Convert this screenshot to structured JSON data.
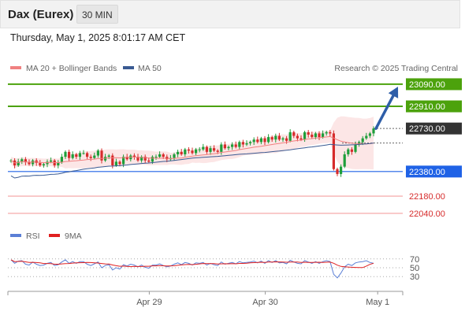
{
  "header": {
    "title": "Dax (Eurex)",
    "timeframe": "30 MIN",
    "timestamp": "Thursday, May 1, 2025 8:01:17 AM CET"
  },
  "legend": {
    "ma20_bb": "MA 20 + Bollinger Bands",
    "ma50": "MA 50",
    "credit": "Research © 2025 Trading Central",
    "rsi": "RSI",
    "rsi_ma": "9MA"
  },
  "colors": {
    "up_candle": "#1e9e3a",
    "down_candle": "#d62b2b",
    "ma20": "#f08080",
    "bollinger_fill": "#fce6e6",
    "ma50": "#3a5a92",
    "resistance": "#4ca20c",
    "pivot": "#1f62e6",
    "support": "#f4a0a0",
    "current_price": "#333333",
    "arrow": "#2e5ea8",
    "rsi": "#5b7fd6",
    "rsi_ma": "#e02020"
  },
  "price_axis": {
    "min": 21950,
    "max": 23160
  },
  "levels": [
    {
      "id": "resistance-2",
      "value": 23090,
      "label": "23090.00",
      "type": "resistance"
    },
    {
      "id": "resistance-1",
      "value": 22910,
      "label": "22910.00",
      "type": "resistance"
    },
    {
      "id": "current-price",
      "value": 22730,
      "label": "22730.00",
      "type": "current"
    },
    {
      "id": "pivot",
      "value": 22380,
      "label": "22380.00",
      "type": "pivot"
    },
    {
      "id": "support-1",
      "value": 22180,
      "label": "22180.00",
      "type": "support"
    },
    {
      "id": "support-2",
      "value": 22040,
      "label": "22040.00",
      "type": "support"
    }
  ],
  "arrow": {
    "from": 22730,
    "to": 23070
  },
  "x_labels": [
    {
      "label": "Apr 29",
      "index": 39
    },
    {
      "label": "Apr 30",
      "index": 71
    },
    {
      "label": "May 1",
      "index": 102
    }
  ],
  "rsi_axis": {
    "min": 0,
    "max": 100,
    "ticks": [
      70,
      50,
      30
    ]
  },
  "chart_data": {
    "type": "candlestick",
    "series": [
      {
        "name": "MA 20 + Bollinger Bands"
      },
      {
        "name": "MA 50"
      },
      {
        "name": "RSI"
      },
      {
        "name": "9MA"
      }
    ],
    "candle_count": 101,
    "start_close": 22470,
    "closes": [
      22470,
      22430,
      22460,
      22480,
      22455,
      22440,
      22470,
      22450,
      22430,
      22440,
      22460,
      22470,
      22430,
      22455,
      22500,
      22540,
      22490,
      22520,
      22500,
      22530,
      22530,
      22500,
      22490,
      22510,
      22550,
      22470,
      22500,
      22510,
      22430,
      22460,
      22440,
      22500,
      22480,
      22510,
      22500,
      22470,
      22500,
      22470,
      22460,
      22500,
      22500,
      22520,
      22500,
      22480,
      22490,
      22520,
      22540,
      22520,
      22560,
      22550,
      22530,
      22560,
      22560,
      22580,
      22540,
      22570,
      22550,
      22540,
      22600,
      22570,
      22580,
      22600,
      22580,
      22620,
      22600,
      22610,
      22620,
      22640,
      22620,
      22650,
      22620,
      22660,
      22640,
      22670,
      22640,
      22650,
      22630,
      22700,
      22670,
      22650,
      22640,
      22700,
      22680,
      22660,
      22690,
      22660,
      22690,
      22700,
      22690,
      22400,
      22360,
      22420,
      22520,
      22560,
      22540,
      22600,
      22620,
      22650,
      22670,
      22690,
      22730
    ],
    "rsi": [
      68,
      60,
      65,
      66,
      58,
      56,
      63,
      58,
      55,
      56,
      60,
      62,
      55,
      57,
      63,
      68,
      60,
      64,
      60,
      64,
      64,
      58,
      55,
      59,
      63,
      50,
      55,
      57,
      45,
      50,
      47,
      57,
      54,
      58,
      56,
      52,
      56,
      51,
      49,
      56,
      56,
      59,
      55,
      52,
      54,
      58,
      61,
      57,
      62,
      60,
      56,
      61,
      60,
      62,
      56,
      60,
      57,
      55,
      63,
      58,
      60,
      62,
      59,
      64,
      61,
      62,
      63,
      65,
      61,
      65,
      60,
      66,
      62,
      66,
      61,
      62,
      59,
      67,
      63,
      60,
      59,
      66,
      63,
      60,
      64,
      60,
      64,
      66,
      64,
      35,
      27,
      38,
      52,
      58,
      55,
      61,
      63,
      64,
      66,
      62,
      60
    ]
  }
}
